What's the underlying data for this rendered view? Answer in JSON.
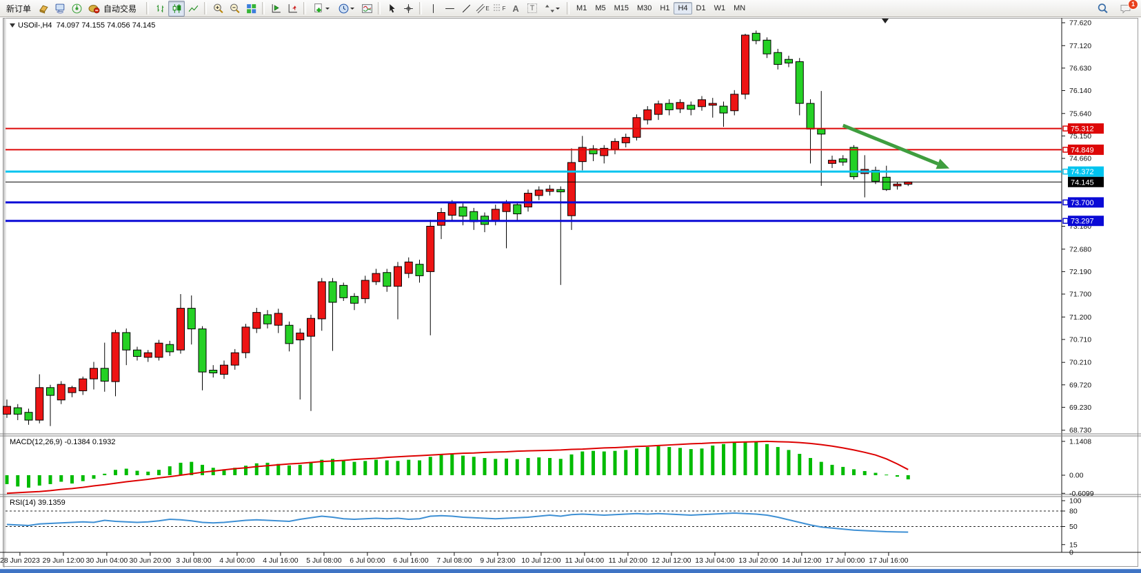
{
  "toolbar": {
    "new_order_label": "新订单",
    "auto_trading_label": "自动交易",
    "letters": {
      "channel": "E",
      "fibonacci": "F",
      "text": "A",
      "label": "T"
    },
    "timeframes": [
      "M1",
      "M5",
      "M15",
      "M30",
      "H1",
      "H4",
      "D1",
      "W1",
      "MN"
    ],
    "active_timeframe": "H4",
    "notification_count": "1"
  },
  "chart_data": [
    {
      "type": "candlestick",
      "title": "USOil-,H4  74.097 74.155 74.056 74.145",
      "symbol": "USOil-",
      "period": "H4",
      "ohlc_display": [
        "74.097",
        "74.155",
        "74.056",
        "74.145"
      ],
      "ylim": [
        68.65,
        77.74
      ],
      "yticks": [
        "77.620",
        "77.120",
        "76.630",
        "76.140",
        "75.640",
        "75.150",
        "74.660",
        "73.180",
        "72.680",
        "72.190",
        "71.700",
        "71.200",
        "70.710",
        "70.210",
        "69.720",
        "69.230",
        "68.730"
      ],
      "up_color": "#ed1414",
      "down_color": "#25d125",
      "candles": [
        [
          69.08,
          69.4,
          69.0,
          69.25
        ],
        [
          69.22,
          69.3,
          68.95,
          69.08
        ],
        [
          69.12,
          69.2,
          68.85,
          68.95
        ],
        [
          68.95,
          69.95,
          68.88,
          69.66
        ],
        [
          69.66,
          69.72,
          68.82,
          69.49
        ],
        [
          69.39,
          69.8,
          69.3,
          69.73
        ],
        [
          69.55,
          69.7,
          69.45,
          69.66
        ],
        [
          69.59,
          69.9,
          69.5,
          69.85
        ],
        [
          69.85,
          70.22,
          69.62,
          70.08
        ],
        [
          70.08,
          70.64,
          69.57,
          69.8
        ],
        [
          69.79,
          70.92,
          69.47,
          70.86
        ],
        [
          70.86,
          70.95,
          70.15,
          70.48
        ],
        [
          70.48,
          70.55,
          70.25,
          70.34
        ],
        [
          70.32,
          70.48,
          70.22,
          70.42
        ],
        [
          70.32,
          70.7,
          70.25,
          70.63
        ],
        [
          70.6,
          70.68,
          70.35,
          70.44
        ],
        [
          70.48,
          71.7,
          70.4,
          71.39
        ],
        [
          71.39,
          71.67,
          70.6,
          70.94
        ],
        [
          70.94,
          71.0,
          69.6,
          70.0
        ],
        [
          70.04,
          70.15,
          69.88,
          69.98
        ],
        [
          69.95,
          70.25,
          69.85,
          70.15
        ],
        [
          70.15,
          70.5,
          70.05,
          70.42
        ],
        [
          70.42,
          71.05,
          70.3,
          70.98
        ],
        [
          70.95,
          71.4,
          70.85,
          71.3
        ],
        [
          71.25,
          71.35,
          70.95,
          71.05
        ],
        [
          71.02,
          71.38,
          70.85,
          71.28
        ],
        [
          71.02,
          71.1,
          70.45,
          70.62
        ],
        [
          70.7,
          70.95,
          69.4,
          70.85
        ],
        [
          70.78,
          71.25,
          69.15,
          71.17
        ],
        [
          71.16,
          72.05,
          70.9,
          71.97
        ],
        [
          71.97,
          72.05,
          70.46,
          71.52
        ],
        [
          71.89,
          71.95,
          71.55,
          71.62
        ],
        [
          71.65,
          71.72,
          71.35,
          71.5
        ],
        [
          71.6,
          72.1,
          71.5,
          72.0
        ],
        [
          71.97,
          72.25,
          71.9,
          72.15
        ],
        [
          72.17,
          72.25,
          71.75,
          71.87
        ],
        [
          71.87,
          72.4,
          71.15,
          72.3
        ],
        [
          72.15,
          72.5,
          72.05,
          72.4
        ],
        [
          72.35,
          72.45,
          71.95,
          72.1
        ],
        [
          72.19,
          73.32,
          70.8,
          73.18
        ],
        [
          73.2,
          73.58,
          72.9,
          73.48
        ],
        [
          73.42,
          73.75,
          73.3,
          73.68
        ],
        [
          73.6,
          73.68,
          73.2,
          73.4
        ],
        [
          73.5,
          73.58,
          73.1,
          73.28
        ],
        [
          73.4,
          73.48,
          73.05,
          73.22
        ],
        [
          73.3,
          73.65,
          73.2,
          73.55
        ],
        [
          73.5,
          73.75,
          72.7,
          73.68
        ],
        [
          73.65,
          73.72,
          73.3,
          73.45
        ],
        [
          73.6,
          73.98,
          73.5,
          73.9
        ],
        [
          73.85,
          74.05,
          73.75,
          73.97
        ],
        [
          73.94,
          74.08,
          73.85,
          73.99
        ],
        [
          73.98,
          74.05,
          71.9,
          73.93
        ],
        [
          73.41,
          74.88,
          73.1,
          74.57
        ],
        [
          74.59,
          75.15,
          74.4,
          74.9
        ],
        [
          74.87,
          74.95,
          74.6,
          74.76
        ],
        [
          74.72,
          74.95,
          74.55,
          74.88
        ],
        [
          74.86,
          75.1,
          74.75,
          75.03
        ],
        [
          75.0,
          75.2,
          74.9,
          75.12
        ],
        [
          75.12,
          75.62,
          75.05,
          75.55
        ],
        [
          75.5,
          75.8,
          75.4,
          75.72
        ],
        [
          75.62,
          75.92,
          75.5,
          75.85
        ],
        [
          75.86,
          75.95,
          75.6,
          75.72
        ],
        [
          75.74,
          75.95,
          75.65,
          75.88
        ],
        [
          75.82,
          75.9,
          75.6,
          75.73
        ],
        [
          75.79,
          76.02,
          75.7,
          75.94
        ],
        [
          75.82,
          75.98,
          75.55,
          75.86
        ],
        [
          75.8,
          75.9,
          75.35,
          75.65
        ],
        [
          75.7,
          76.15,
          75.6,
          76.06
        ],
        [
          76.06,
          77.38,
          75.95,
          77.35
        ],
        [
          77.39,
          77.45,
          77.15,
          77.23
        ],
        [
          77.24,
          77.3,
          76.85,
          76.94
        ],
        [
          76.97,
          77.05,
          76.6,
          76.71
        ],
        [
          76.82,
          76.9,
          76.65,
          76.74
        ],
        [
          76.77,
          76.85,
          75.6,
          75.86
        ],
        [
          75.86,
          75.95,
          74.55,
          75.3
        ],
        [
          75.3,
          76.13,
          74.06,
          75.19
        ],
        [
          74.55,
          74.72,
          74.45,
          74.62
        ],
        [
          74.65,
          74.73,
          74.5,
          74.58
        ],
        [
          74.9,
          74.95,
          74.2,
          74.26
        ],
        [
          74.33,
          74.73,
          73.81,
          74.42
        ],
        [
          74.4,
          74.48,
          74.1,
          74.16
        ],
        [
          74.25,
          74.5,
          73.95,
          73.98
        ],
        [
          74.06,
          74.15,
          73.98,
          74.1
        ],
        [
          74.097,
          74.155,
          74.056,
          74.145
        ]
      ],
      "hlines": [
        {
          "price": 75.312,
          "label": "75.312",
          "color": "#dd0808",
          "width": 2,
          "marker": true
        },
        {
          "price": 74.849,
          "label": "74.849",
          "color": "#dd0808",
          "width": 2,
          "marker": true
        },
        {
          "price": 74.372,
          "label": "74.372",
          "color": "#00c4ef",
          "width": 3,
          "marker": true
        },
        {
          "price": 74.145,
          "label": "74.145",
          "color": "#000000",
          "width": 1,
          "marker": false,
          "is_current_price": true
        },
        {
          "price": 73.7,
          "label": "73.700",
          "color": "#0a0ad6",
          "width": 3,
          "marker": true
        },
        {
          "price": 73.297,
          "label": "73.297",
          "color": "#0a0ad6",
          "width": 3,
          "marker": true
        }
      ],
      "arrow_annotation": {
        "from_bar": 77.0,
        "from_price": 75.38,
        "to_bar": 86.8,
        "to_price": 74.44,
        "color": "#3f9e3f"
      },
      "x_time_labels": [
        "28 Jun 2023",
        "29 Jun 12:00",
        "30 Jun 04:00",
        "30 Jun 20:00",
        "3 Jul 08:00",
        "4 Jul 00:00",
        "4 Jul 16:00",
        "5 Jul 08:00",
        "6 Jul 00:00",
        "6 Jul 16:00",
        "7 Jul 08:00",
        "9 Jul 23:00",
        "10 Jul 12:00",
        "11 Jul 04:00",
        "11 Jul 20:00",
        "12 Jul 12:00",
        "13 Jul 04:00",
        "13 Jul 20:00",
        "14 Jul 12:00",
        "17 Jul 00:00",
        "17 Jul 16:00"
      ],
      "first_label_bar_index": 1.2,
      "label_bar_step": 4
    },
    {
      "type": "bar",
      "name": "MACD(12,26,9)",
      "label": "MACD(12,26,9) -0.1384 0.1932",
      "main_value": -0.1384,
      "signal_value": 0.1932,
      "ylim": [
        -0.65,
        1.3
      ],
      "yticks": [
        {
          "v": 1.1408,
          "t": "1.1408"
        },
        {
          "v": 0,
          "t": "0.00"
        },
        {
          "v": -0.6099,
          "t": "-0.6099"
        }
      ],
      "bar_color": "#00bb00",
      "signal_color": "#dd0000",
      "histogram": [
        -0.3,
        -0.38,
        -0.42,
        -0.35,
        -0.3,
        -0.22,
        -0.28,
        -0.2,
        -0.12,
        0.05,
        0.18,
        0.22,
        0.15,
        0.12,
        0.18,
        0.3,
        0.42,
        0.45,
        0.35,
        0.25,
        0.2,
        0.25,
        0.32,
        0.4,
        0.42,
        0.38,
        0.33,
        0.35,
        0.45,
        0.52,
        0.55,
        0.5,
        0.45,
        0.48,
        0.52,
        0.5,
        0.48,
        0.52,
        0.5,
        0.62,
        0.68,
        0.7,
        0.66,
        0.62,
        0.58,
        0.55,
        0.56,
        0.54,
        0.58,
        0.6,
        0.58,
        0.55,
        0.7,
        0.8,
        0.82,
        0.8,
        0.82,
        0.85,
        0.9,
        0.95,
        0.98,
        0.95,
        0.92,
        0.88,
        0.9,
        1.0,
        1.05,
        1.1,
        1.14,
        1.12,
        1.05,
        0.95,
        0.85,
        0.72,
        0.58,
        0.45,
        0.35,
        0.28,
        0.2,
        0.14,
        0.08,
        0.02,
        -0.05,
        -0.14
      ],
      "signal": [
        -0.61,
        -0.59,
        -0.57,
        -0.55,
        -0.52,
        -0.48,
        -0.45,
        -0.41,
        -0.36,
        -0.32,
        -0.27,
        -0.22,
        -0.18,
        -0.14,
        -0.09,
        -0.05,
        0.0,
        0.05,
        0.1,
        0.14,
        0.18,
        0.22,
        0.25,
        0.29,
        0.32,
        0.35,
        0.38,
        0.4,
        0.43,
        0.46,
        0.48,
        0.5,
        0.53,
        0.55,
        0.57,
        0.6,
        0.62,
        0.64,
        0.66,
        0.68,
        0.7,
        0.72,
        0.74,
        0.75,
        0.77,
        0.78,
        0.79,
        0.81,
        0.82,
        0.83,
        0.84,
        0.85,
        0.87,
        0.88,
        0.9,
        0.92,
        0.93,
        0.95,
        0.97,
        0.98,
        1.0,
        1.02,
        1.04,
        1.06,
        1.07,
        1.09,
        1.1,
        1.11,
        1.12,
        1.13,
        1.14,
        1.13,
        1.12,
        1.1,
        1.07,
        1.03,
        0.98,
        0.92,
        0.85,
        0.77,
        0.68,
        0.55,
        0.38,
        0.19
      ]
    },
    {
      "type": "line",
      "name": "RSI(14)",
      "label": "RSI(14) 39.1359",
      "value": 39.1359,
      "ylim": [
        0,
        100
      ],
      "yticks": [
        {
          "v": 100,
          "t": "100"
        },
        {
          "v": 80,
          "t": "80"
        },
        {
          "v": 50,
          "t": "50"
        },
        {
          "v": 15,
          "t": "15"
        },
        {
          "v": 0,
          "t": "0"
        }
      ],
      "dashed_levels": [
        80,
        50
      ],
      "line_color": "#3d8fd4",
      "values": [
        54,
        53,
        52,
        55,
        56,
        57,
        58,
        59,
        58,
        62,
        60,
        59,
        58,
        59,
        61,
        64,
        63,
        61,
        58,
        57,
        58,
        60,
        62,
        63,
        62,
        61,
        60,
        64,
        67,
        70,
        68,
        65,
        64,
        65,
        66,
        65,
        66,
        64,
        65,
        70,
        71,
        70,
        68,
        67,
        66,
        65,
        66,
        67,
        68,
        70,
        72,
        70,
        73,
        74,
        73,
        72,
        73,
        74,
        75,
        74,
        75,
        74,
        73,
        72,
        73,
        74,
        75,
        76,
        75,
        74,
        72,
        68,
        63,
        58,
        53,
        49,
        47,
        45,
        43,
        42,
        41,
        40,
        39.5,
        39.14
      ]
    }
  ]
}
